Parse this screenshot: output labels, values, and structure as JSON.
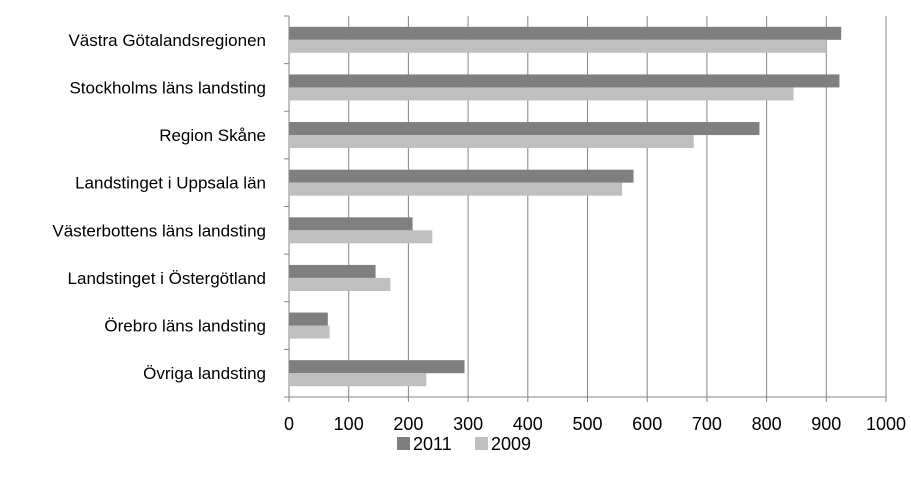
{
  "chart_data": {
    "type": "bar",
    "orientation": "horizontal",
    "title": "",
    "xlabel": "",
    "ylabel": "",
    "categories": [
      "Västra Götalandsregionen",
      "Stockholms läns landsting",
      "Region Skåne",
      "Landstinget i Uppsala län",
      "Västerbottens läns landsting",
      "Landstinget i Östergötland",
      "Örebro läns landsting",
      "Övriga landsting"
    ],
    "series": [
      {
        "name": "2011",
        "color": "#7f7f7f",
        "values": [
          925,
          922,
          788,
          577,
          207,
          145,
          65,
          294
        ]
      },
      {
        "name": "2009",
        "color": "#bfbfbf",
        "values": [
          900,
          845,
          678,
          558,
          240,
          170,
          68,
          230
        ]
      }
    ],
    "xlim": [
      0,
      1000
    ],
    "xticks": [
      0,
      100,
      200,
      300,
      400,
      500,
      600,
      700,
      800,
      900,
      1000
    ],
    "grid": "vertical",
    "legend": "bottom"
  }
}
